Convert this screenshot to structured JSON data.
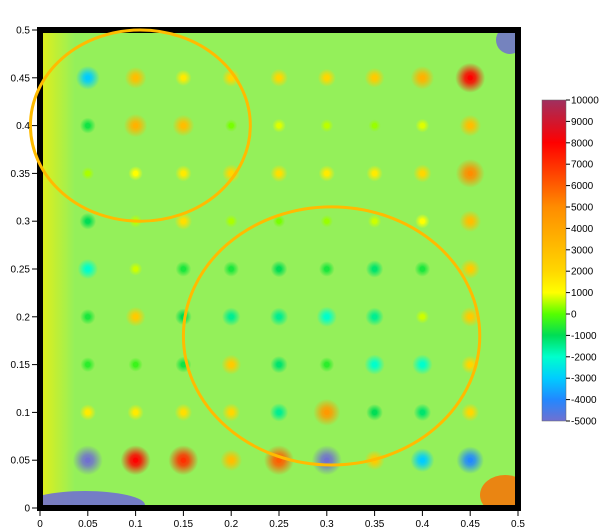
{
  "chart_data": {
    "type": "heatmap",
    "title": "",
    "xlabel": "",
    "ylabel": "",
    "xlim": [
      0,
      0.5
    ],
    "ylim": [
      0,
      0.5
    ],
    "x_ticks": [
      "0",
      "0.05",
      "0.1",
      "0.15",
      "0.2",
      "0.25",
      "0.3",
      "0.35",
      "0.4",
      "0.45",
      "0.5"
    ],
    "y_ticks": [
      "0",
      "0.05",
      "0.1",
      "0.15",
      "0.2",
      "0.25",
      "0.3",
      "0.35",
      "0.4",
      "0.45",
      "0.5"
    ],
    "colorbar": {
      "range": [
        -5000,
        10000
      ],
      "ticks": [
        "10000",
        "9000",
        "8000",
        "7000",
        "6000",
        "5000",
        "4000",
        "3000",
        "2000",
        "1000",
        "0",
        "-1000",
        "-2000",
        "-3000",
        "-4000",
        "-5000"
      ],
      "colors": [
        {
          "value": 10000,
          "color": "#a0305f"
        },
        {
          "value": 8000,
          "color": "#ff0000"
        },
        {
          "value": 5000,
          "color": "#ff8c00"
        },
        {
          "value": 2000,
          "color": "#ffd700"
        },
        {
          "value": 1000,
          "color": "#ffff00"
        },
        {
          "value": 0,
          "color": "#55ff00"
        },
        {
          "value": -1000,
          "color": "#00dd55"
        },
        {
          "value": -2000,
          "color": "#00ffcc"
        },
        {
          "value": -3000,
          "color": "#00ccff"
        },
        {
          "value": -4000,
          "color": "#2288ff"
        },
        {
          "value": -5000,
          "color": "#7070d0"
        }
      ]
    },
    "background_value": 300,
    "grid": false,
    "nodes": {
      "x": [
        0.05,
        0.1,
        0.15,
        0.2,
        0.25,
        0.3,
        0.35,
        0.4,
        0.45
      ],
      "y": [
        0.05,
        0.1,
        0.15,
        0.2,
        0.25,
        0.3,
        0.35,
        0.4,
        0.45
      ],
      "values_top_row_first": [
        [
          -3000,
          3000,
          1500,
          2000,
          2000,
          2000,
          2500,
          3500,
          8000
        ],
        [
          -800,
          3500,
          3000,
          200,
          800,
          600,
          400,
          800,
          3000
        ],
        [
          500,
          1000,
          1500,
          2000,
          1800,
          1500,
          1500,
          2000,
          5000
        ],
        [
          -1000,
          600,
          1800,
          500,
          200,
          400,
          700,
          1000,
          3000
        ],
        [
          -2000,
          700,
          -700,
          -700,
          -1000,
          -700,
          -1200,
          -700,
          2500
        ],
        [
          -700,
          2500,
          -1000,
          -1500,
          -1500,
          -2000,
          -1500,
          700,
          2500
        ],
        [
          -500,
          -300,
          -800,
          2500,
          -1200,
          -500,
          -2000,
          -2000,
          2000
        ],
        [
          1500,
          1500,
          1800,
          2000,
          -1500,
          4500,
          -1000,
          -1200,
          2000
        ],
        [
          -5000,
          8000,
          7000,
          3000,
          6000,
          -5000,
          2500,
          -3000,
          -4000
        ]
      ]
    },
    "annotations": [
      {
        "type": "ellipse",
        "color": "#ffbb00",
        "cx": 0.105,
        "cy": 0.4,
        "rx": 0.115,
        "ry": 0.1
      },
      {
        "type": "ellipse",
        "color": "#ffbb00",
        "cx": 0.305,
        "cy": 0.18,
        "rx": 0.155,
        "ry": 0.135
      }
    ]
  }
}
